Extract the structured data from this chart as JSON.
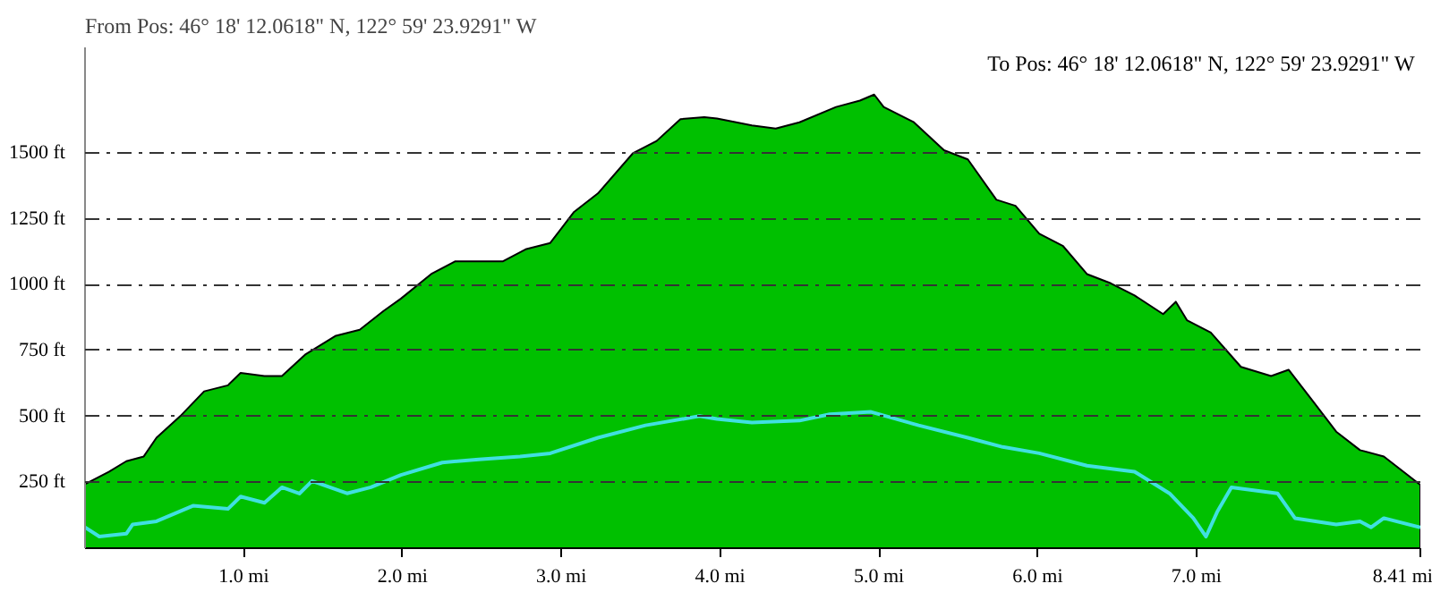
{
  "chart_data": {
    "type": "area",
    "title": "From Pos: 46° 18' 12.0618\" N, 122° 59' 23.9291\" W",
    "annotations": [
      "To Pos: 46° 18' 12.0618\" N, 122° 59' 23.9291\" W"
    ],
    "xlim": [
      0,
      8.41
    ],
    "ylim": [
      0,
      1900
    ],
    "xticks": [
      {
        "value": 1,
        "label": "1.0 mi"
      },
      {
        "value": 2,
        "label": "2.0 mi"
      },
      {
        "value": 3,
        "label": "3.0 mi"
      },
      {
        "value": 4,
        "label": "4.0 mi"
      },
      {
        "value": 5,
        "label": "5.0 mi"
      },
      {
        "value": 6,
        "label": "6.0 mi"
      },
      {
        "value": 7,
        "label": "7.0 mi"
      },
      {
        "value": 8.41,
        "label": "8.41 mi"
      }
    ],
    "yticks": [
      {
        "value": 250,
        "label": "250 ft"
      },
      {
        "value": 500,
        "label": "500 ft"
      },
      {
        "value": 750,
        "label": "750 ft"
      },
      {
        "value": 1000,
        "label": "1000 ft"
      },
      {
        "value": 1250,
        "label": "1250 ft"
      },
      {
        "value": 1500,
        "label": "1500 ft"
      }
    ],
    "grid": "y",
    "series": [
      {
        "type": "area",
        "color": "#00c000",
        "x": [
          0,
          0.15,
          0.26,
          0.37,
          0.45,
          0.6,
          0.75,
          0.9,
          0.98,
          1.13,
          1.24,
          1.39,
          1.58,
          1.73,
          1.88,
          1.99,
          2.18,
          2.33,
          2.48,
          2.63,
          2.78,
          2.93,
          3.08,
          3.23,
          3.45,
          3.6,
          3.75,
          3.9,
          3.98,
          4.2,
          4.35,
          4.5,
          4.73,
          4.88,
          4.97,
          5.03,
          5.22,
          5.41,
          5.56,
          5.74,
          5.86,
          6.01,
          6.16,
          6.31,
          6.46,
          6.61,
          6.79,
          6.87,
          6.94,
          7.09,
          7.28,
          7.47,
          7.58,
          7.73,
          7.88,
          8.03,
          8.18,
          8.41
        ],
        "values": [
          243,
          290,
          330,
          348,
          419,
          501,
          595,
          618,
          665,
          653,
          653,
          736,
          806,
          829,
          900,
          947,
          1040,
          1088,
          1088,
          1088,
          1135,
          1158,
          1276,
          1346,
          1498,
          1545,
          1628,
          1635,
          1630,
          1604,
          1592,
          1616,
          1674,
          1698,
          1721,
          1674,
          1616,
          1510,
          1475,
          1322,
          1299,
          1193,
          1146,
          1040,
          1005,
          959,
          888,
          935,
          865,
          818,
          688,
          653,
          677,
          560,
          442,
          372,
          348,
          240
        ]
      },
      {
        "type": "line",
        "color": "#40e0e0",
        "x": [
          0,
          0.09,
          0.26,
          0.3,
          0.45,
          0.68,
          0.9,
          0.98,
          1.13,
          1.24,
          1.35,
          1.43,
          1.65,
          1.8,
          1.99,
          2.25,
          2.48,
          2.74,
          2.93,
          3.23,
          3.53,
          3.87,
          3.98,
          4.2,
          4.5,
          4.69,
          4.95,
          5.25,
          5.56,
          5.78,
          6.01,
          6.31,
          6.61,
          6.83,
          6.98,
          7.06,
          7.13,
          7.22,
          7.51,
          7.62,
          7.88,
          8.03,
          8.1,
          8.18,
          8.41
        ],
        "values": [
          79,
          44,
          55,
          90,
          102,
          161,
          149,
          196,
          172,
          231,
          207,
          255,
          208,
          231,
          278,
          325,
          337,
          348,
          360,
          419,
          466,
          501,
          490,
          477,
          484,
          508,
          517,
          466,
          419,
          384,
          360,
          313,
          290,
          208,
          114,
          44,
          137,
          231,
          208,
          114,
          90,
          102,
          79,
          114,
          79
        ]
      }
    ]
  }
}
